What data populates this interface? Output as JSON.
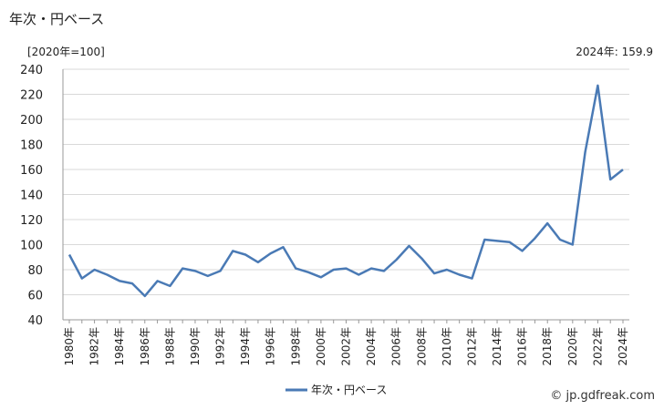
{
  "title": "年次・円ベース",
  "unit": "[2020年=100]",
  "latest": "2024年: 159.9",
  "credit": "© jp.gdfreak.com",
  "chart_data": {
    "type": "line",
    "x": [
      "1980年",
      "1981年",
      "1982年",
      "1983年",
      "1984年",
      "1985年",
      "1986年",
      "1987年",
      "1988年",
      "1989年",
      "1990年",
      "1991年",
      "1992年",
      "1993年",
      "1994年",
      "1995年",
      "1996年",
      "1997年",
      "1998年",
      "1999年",
      "2000年",
      "2001年",
      "2002年",
      "2003年",
      "2004年",
      "2005年",
      "2006年",
      "2007年",
      "2008年",
      "2009年",
      "2010年",
      "2011年",
      "2012年",
      "2013年",
      "2014年",
      "2015年",
      "2016年",
      "2017年",
      "2018年",
      "2019年",
      "2020年",
      "2021年",
      "2022年",
      "2023年",
      "2024年"
    ],
    "xtick_labels": [
      "1980年",
      "1982年",
      "1984年",
      "1986年",
      "1988年",
      "1990年",
      "1992年",
      "1994年",
      "1996年",
      "1998年",
      "2000年",
      "2002年",
      "2004年",
      "2006年",
      "2008年",
      "2010年",
      "2012年",
      "2014年",
      "2016年",
      "2018年",
      "2020年",
      "2022年",
      "2024年"
    ],
    "series": [
      {
        "name": "年次・円ベース",
        "color": "#4a7ab5",
        "values": [
          92,
          73,
          80,
          76,
          71,
          69,
          59,
          71,
          67,
          81,
          79,
          75,
          79,
          95,
          92,
          86,
          93,
          98,
          81,
          78,
          74,
          80,
          81,
          76,
          81,
          79,
          88,
          99,
          89,
          77,
          80,
          76,
          73,
          104,
          103,
          102,
          95,
          105,
          117,
          104,
          100,
          174,
          227,
          152,
          159.9
        ]
      }
    ],
    "ylim": [
      40,
      240
    ],
    "yticks": [
      40,
      60,
      80,
      100,
      120,
      140,
      160,
      180,
      200,
      220,
      240
    ],
    "grid": true,
    "legend": "bottom-center"
  }
}
